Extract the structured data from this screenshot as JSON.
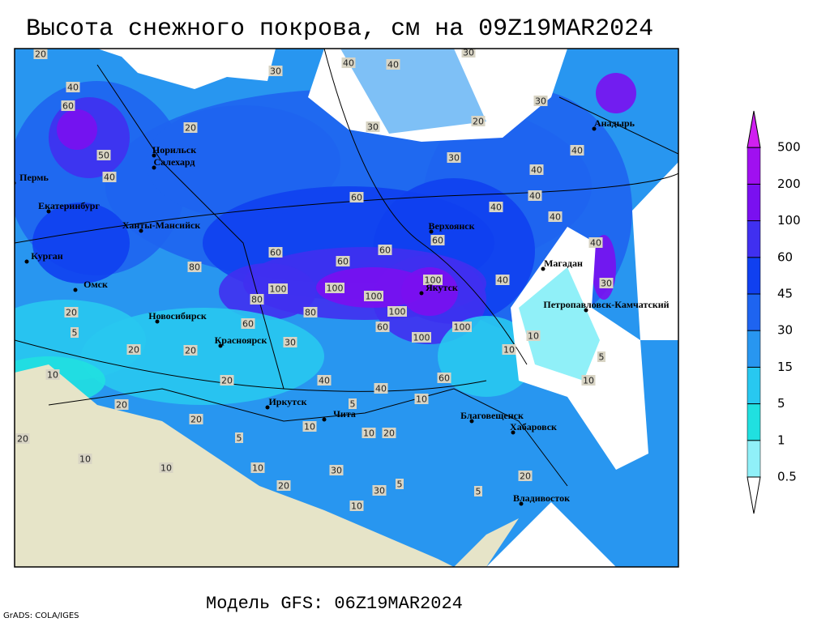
{
  "title": "Высота снежного покрова, см на 09Z19MAR2024",
  "footer": "Модель GFS: 06Z19MAR2024",
  "credit": "GrADS: COLA/IGES",
  "legend": {
    "levels": [
      0.5,
      1,
      5,
      15,
      30,
      45,
      60,
      100,
      200,
      500
    ],
    "colors": [
      "#ffffff",
      "#90f0f8",
      "#20e0e0",
      "#28c8f0",
      "#2896f0",
      "#1e64f0",
      "#1040f0",
      "#4030f0",
      "#7a10f0",
      "#a010f0",
      "#d020f0"
    ]
  },
  "cities": [
    "Норильск",
    "Салехард",
    "Пермь",
    "Екатеринбург",
    "Ханты-Мансийск",
    "Курган",
    "Омск",
    "Новосибирск",
    "Красноярск",
    "Иркутск",
    "Чита",
    "Верхоянск",
    "Якутск",
    "Анадырь",
    "Магадан",
    "Петропавловск-Камчатский",
    "Благовещенск",
    "Хабаровск",
    "Владивосток"
  ],
  "contour_labels": [
    20,
    40,
    60,
    50,
    40,
    20,
    30,
    40,
    40,
    30,
    20,
    30,
    30,
    30,
    40,
    40,
    40,
    40,
    40,
    30,
    40,
    40,
    60,
    60,
    60,
    60,
    60,
    100,
    100,
    100,
    100,
    100,
    100,
    100,
    60,
    80,
    80,
    80,
    60,
    30,
    40,
    40,
    60,
    10,
    10,
    10,
    5,
    10,
    20,
    20,
    20,
    20,
    20,
    20,
    5,
    10,
    5,
    10,
    20,
    30,
    30,
    5,
    20,
    5,
    10,
    20,
    10,
    10,
    10,
    20,
    5,
    10
  ]
}
